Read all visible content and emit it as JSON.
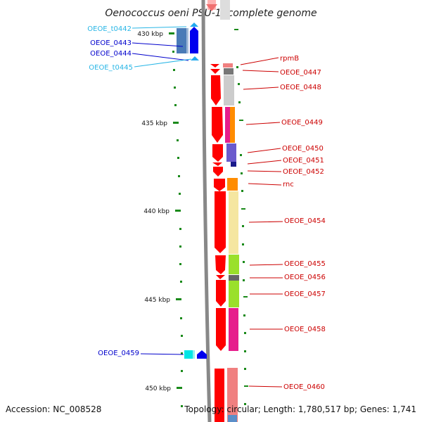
{
  "title": "Oenococcus oeni PSU-1, complete genome",
  "accession": "Accession: NC_008528",
  "topology": "Topology: circular; Length: 1,780,517 bp; Genes: 1,741",
  "scale_labels": [
    "430 kbp",
    "435 kbp",
    "440 kbp",
    "445 kbp",
    "450 kbp"
  ],
  "gene_labels": {
    "left": [
      {
        "text": "OEOE_t0442",
        "color": "#29b6e6"
      },
      {
        "text": "OEOE_0443",
        "color": "#0000cc"
      },
      {
        "text": "OEOE_0444",
        "color": "#0000cc"
      },
      {
        "text": "OEOE_t0445",
        "color": "#29b6e6"
      },
      {
        "text": "OEOE_0459",
        "color": "#0000cc"
      }
    ],
    "right": [
      {
        "text": "rpmB",
        "color": "#cc0000"
      },
      {
        "text": "OEOE_0447",
        "color": "#cc0000"
      },
      {
        "text": "OEOE_0448",
        "color": "#cc0000"
      },
      {
        "text": "OEOE_0449",
        "color": "#cc0000"
      },
      {
        "text": "OEOE_0450",
        "color": "#cc0000"
      },
      {
        "text": "OEOE_0451",
        "color": "#cc0000"
      },
      {
        "text": "OEOE_0452",
        "color": "#cc0000"
      },
      {
        "text": "rnc",
        "color": "#cc0000"
      },
      {
        "text": "OEOE_0454",
        "color": "#cc0000"
      },
      {
        "text": "OEOE_0455",
        "color": "#cc0000"
      },
      {
        "text": "OEOE_0456",
        "color": "#cc0000"
      },
      {
        "text": "OEOE_0457",
        "color": "#cc0000"
      },
      {
        "text": "OEOE_0458",
        "color": "#cc0000"
      },
      {
        "text": "OEOE_0460",
        "color": "#cc0000"
      }
    ]
  },
  "colors": {
    "forward_gene": "#ff0000",
    "reverse_gene": "#0000ff",
    "trna": "#22ccee",
    "tick": "#008800",
    "backbone": "#888888"
  }
}
